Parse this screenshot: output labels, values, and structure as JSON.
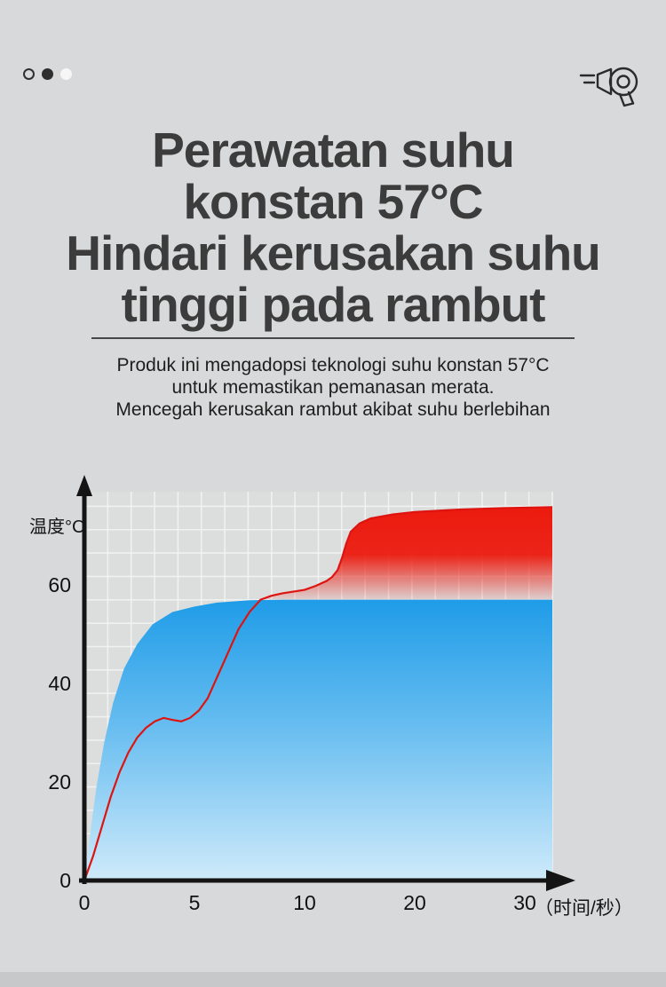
{
  "page": {
    "bg_color": "#d8d9da",
    "footer_band_color": "#c7c8c9"
  },
  "pager": {
    "dots": [
      "ring",
      "filled",
      "light"
    ]
  },
  "header": {
    "title_lines": [
      "Perawatan suhu",
      "konstan 57°C",
      "Hindari kerusakan suhu",
      "tinggi pada rambut"
    ],
    "subtitle_lines": [
      "Produk ini mengadopsi teknologi suhu konstan 57°C",
      "untuk memastikan pemanasan merata.",
      "Mencegah kerusakan rambut akibat suhu berlebihan"
    ]
  },
  "chart_data": {
    "type": "area",
    "title": "",
    "ylabel": "温度°C",
    "xlabel": "（时间/秒）",
    "x_ticks": [
      0,
      5,
      10,
      20,
      30
    ],
    "y_ticks": [
      0,
      20,
      40,
      60
    ],
    "ylim": [
      0,
      80
    ],
    "x_axis_nonlinear": true,
    "grid": true,
    "plateau": 57,
    "colors": {
      "axis": "#141414",
      "grid_line": "#f2f3f3",
      "plot_bg": "#dcdddd",
      "blue_top": "#1f9ce8",
      "blue_mid": "#67bdf0",
      "blue_bottom": "#cfeafa",
      "red": "#ec1a0e",
      "red_line": "#de1410"
    },
    "series": [
      {
        "id": "constant-57c-product",
        "type": "area",
        "points": [
          [
            0,
            0
          ],
          [
            0.25,
            9
          ],
          [
            0.55,
            19
          ],
          [
            0.9,
            28
          ],
          [
            1.3,
            36
          ],
          [
            1.8,
            43
          ],
          [
            2.4,
            48
          ],
          [
            3.1,
            52
          ],
          [
            4,
            54.5
          ],
          [
            5,
            55.6
          ],
          [
            6,
            56.4
          ],
          [
            7.5,
            56.9
          ],
          [
            9,
            57
          ],
          [
            32.5,
            57
          ]
        ]
      },
      {
        "id": "ordinary-dryer-overheat",
        "type": "line-area",
        "points": [
          [
            0,
            0
          ],
          [
            0.4,
            5
          ],
          [
            0.8,
            11
          ],
          [
            1.2,
            17
          ],
          [
            1.6,
            22
          ],
          [
            2,
            26
          ],
          [
            2.4,
            29
          ],
          [
            2.8,
            31
          ],
          [
            3.2,
            32.3
          ],
          [
            3.6,
            33
          ],
          [
            4,
            32.6
          ],
          [
            4.4,
            32.3
          ],
          [
            4.8,
            33
          ],
          [
            5.2,
            34.5
          ],
          [
            5.6,
            37
          ],
          [
            6,
            41
          ],
          [
            6.5,
            46
          ],
          [
            7,
            51
          ],
          [
            7.5,
            54.5
          ],
          [
            8,
            57
          ],
          [
            8.5,
            57.8
          ],
          [
            9,
            58.3
          ],
          [
            10,
            59
          ],
          [
            11,
            59.8
          ],
          [
            12,
            60.8
          ],
          [
            12.5,
            61.6
          ],
          [
            13,
            63
          ],
          [
            13.4,
            65.5
          ],
          [
            13.8,
            68.5
          ],
          [
            14.2,
            70.8
          ],
          [
            15,
            72.5
          ],
          [
            16,
            73.5
          ],
          [
            18,
            74.3
          ],
          [
            20,
            74.8
          ],
          [
            24,
            75.3
          ],
          [
            28,
            75.6
          ],
          [
            32.5,
            75.8
          ]
        ]
      }
    ]
  }
}
